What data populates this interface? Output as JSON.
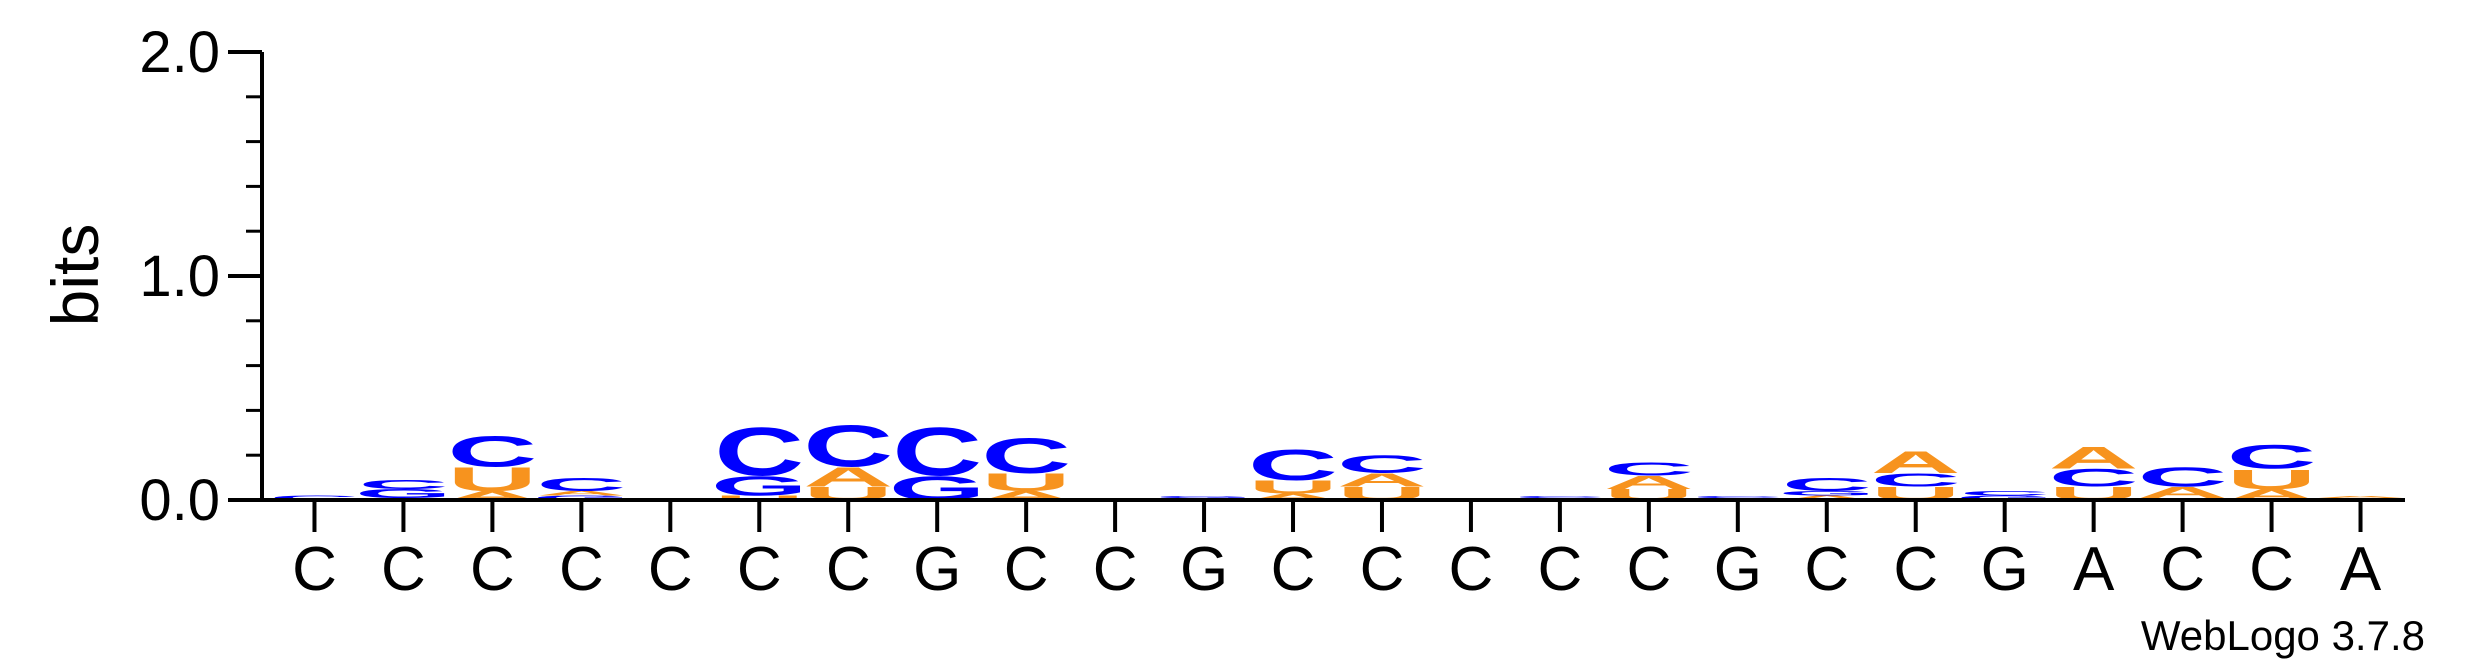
{
  "chart_data": {
    "type": "sequence-logo",
    "ylabel": "bits",
    "ylim": [
      0,
      2.0
    ],
    "y_ticks": [
      "0.0",
      "1.0",
      "2.0"
    ],
    "credit": "WebLogo 3.7.8",
    "colors": {
      "A": "#f7931e",
      "C": "#0000ff",
      "G": "#0000ff",
      "U": "#f7931e"
    },
    "positions": [
      {
        "label": "C",
        "stack": [
          {
            "letter": "C",
            "bits": 0.02
          }
        ]
      },
      {
        "label": "C",
        "stack": [
          {
            "letter": "A",
            "bits": 0.01
          },
          {
            "letter": "G",
            "bits": 0.04
          },
          {
            "letter": "C",
            "bits": 0.04
          }
        ]
      },
      {
        "label": "C",
        "stack": [
          {
            "letter": "A",
            "bits": 0.04
          },
          {
            "letter": "U",
            "bits": 0.11
          },
          {
            "letter": "C",
            "bits": 0.14
          }
        ]
      },
      {
        "label": "C",
        "stack": [
          {
            "letter": "G",
            "bits": 0.02
          },
          {
            "letter": "A",
            "bits": 0.02
          },
          {
            "letter": "C",
            "bits": 0.06
          }
        ]
      },
      {
        "label": "C",
        "stack": []
      },
      {
        "label": "C",
        "stack": [
          {
            "letter": "U",
            "bits": 0.02
          },
          {
            "letter": "G",
            "bits": 0.09
          },
          {
            "letter": "C",
            "bits": 0.22
          }
        ]
      },
      {
        "label": "C",
        "stack": [
          {
            "letter": "U",
            "bits": 0.06
          },
          {
            "letter": "A",
            "bits": 0.09
          },
          {
            "letter": "C",
            "bits": 0.19
          }
        ]
      },
      {
        "label": "G",
        "stack": [
          {
            "letter": "G",
            "bits": 0.11
          },
          {
            "letter": "C",
            "bits": 0.22
          }
        ]
      },
      {
        "label": "C",
        "stack": [
          {
            "letter": "A",
            "bits": 0.04
          },
          {
            "letter": "U",
            "bits": 0.08
          },
          {
            "letter": "C",
            "bits": 0.16
          }
        ]
      },
      {
        "label": "C",
        "stack": []
      },
      {
        "label": "G",
        "stack": [
          {
            "letter": "C",
            "bits": 0.01
          },
          {
            "letter": "G",
            "bits": 0.01
          }
        ]
      },
      {
        "label": "C",
        "stack": [
          {
            "letter": "A",
            "bits": 0.03
          },
          {
            "letter": "U",
            "bits": 0.06
          },
          {
            "letter": "C",
            "bits": 0.14
          }
        ]
      },
      {
        "label": "C",
        "stack": [
          {
            "letter": "U",
            "bits": 0.06
          },
          {
            "letter": "A",
            "bits": 0.06
          },
          {
            "letter": "C",
            "bits": 0.08
          }
        ]
      },
      {
        "label": "C",
        "stack": []
      },
      {
        "label": "C",
        "stack": [
          {
            "letter": "A",
            "bits": 0.01
          },
          {
            "letter": "C",
            "bits": 0.01
          }
        ]
      },
      {
        "label": "C",
        "stack": [
          {
            "letter": "U",
            "bits": 0.05
          },
          {
            "letter": "A",
            "bits": 0.06
          },
          {
            "letter": "C",
            "bits": 0.06
          }
        ]
      },
      {
        "label": "G",
        "stack": [
          {
            "letter": "G",
            "bits": 0.01
          },
          {
            "letter": "C",
            "bits": 0.01
          }
        ]
      },
      {
        "label": "C",
        "stack": [
          {
            "letter": "A",
            "bits": 0.02
          },
          {
            "letter": "G",
            "bits": 0.02
          },
          {
            "letter": "C",
            "bits": 0.06
          }
        ]
      },
      {
        "label": "C",
        "stack": [
          {
            "letter": "U",
            "bits": 0.06
          },
          {
            "letter": "C",
            "bits": 0.06
          },
          {
            "letter": "A",
            "bits": 0.1
          }
        ]
      },
      {
        "label": "G",
        "stack": [
          {
            "letter": "G",
            "bits": 0.02
          },
          {
            "letter": "C",
            "bits": 0.02
          }
        ]
      },
      {
        "label": "A",
        "stack": [
          {
            "letter": "U",
            "bits": 0.06
          },
          {
            "letter": "C",
            "bits": 0.08
          },
          {
            "letter": "A",
            "bits": 0.1
          }
        ]
      },
      {
        "label": "C",
        "stack": [
          {
            "letter": "G",
            "bits": 0.01
          },
          {
            "letter": "A",
            "bits": 0.05
          },
          {
            "letter": "C",
            "bits": 0.09
          }
        ]
      },
      {
        "label": "C",
        "stack": [
          {
            "letter": "A",
            "bits": 0.05
          },
          {
            "letter": "U",
            "bits": 0.09
          },
          {
            "letter": "C",
            "bits": 0.11
          }
        ]
      },
      {
        "label": "A",
        "stack": [
          {
            "letter": "C",
            "bits": 0.01
          },
          {
            "letter": "A",
            "bits": 0.01
          }
        ]
      }
    ]
  }
}
